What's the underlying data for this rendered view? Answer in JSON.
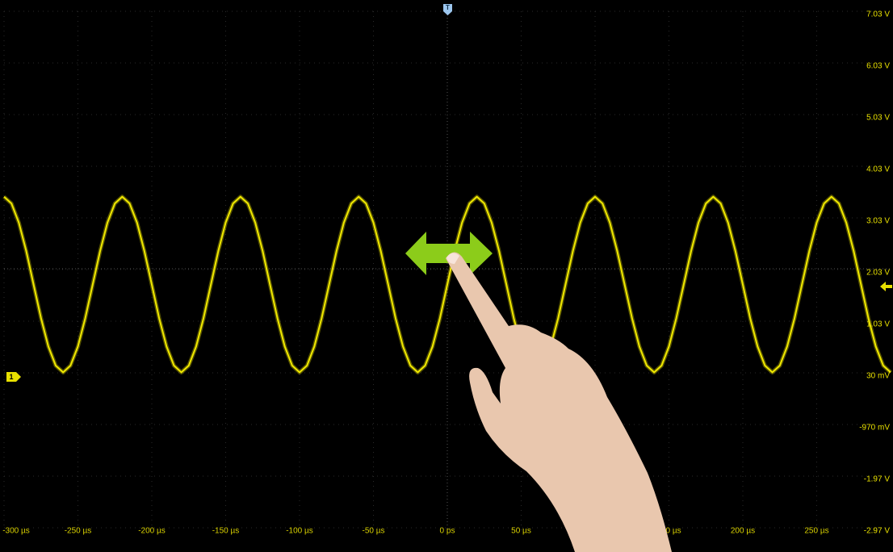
{
  "chart_data": {
    "type": "line",
    "trigger_marker": "T",
    "channel_marker": "1",
    "x": [
      -300,
      -295,
      -290,
      -285,
      -280,
      -275,
      -270,
      -265,
      -260,
      -255,
      -250,
      -245,
      -240,
      -235,
      -230,
      -225,
      -220,
      -215,
      -210,
      -205,
      -200,
      -195,
      -190,
      -185,
      -180,
      -175,
      -170,
      -165,
      -160,
      -155,
      -150,
      -145,
      -140,
      -135,
      -130,
      -125,
      -120,
      -115,
      -110,
      -105,
      -100,
      -95,
      -90,
      -85,
      -80,
      -75,
      -70,
      -65,
      -60,
      -55,
      -50,
      -45,
      -40,
      -35,
      -30,
      -25,
      -20,
      -15,
      -10,
      -5,
      0,
      5,
      10,
      15,
      20,
      25,
      30,
      35,
      40,
      45,
      50,
      55,
      60,
      65,
      70,
      75,
      80,
      85,
      90,
      95,
      100,
      105,
      110,
      115,
      120,
      125,
      130,
      135,
      140,
      145,
      150,
      155,
      160,
      165,
      170,
      175,
      180,
      185,
      190,
      195,
      200,
      205,
      210,
      215,
      220,
      225,
      230,
      235,
      240,
      245,
      250,
      255,
      260,
      265,
      270,
      275,
      280,
      285,
      290,
      295,
      300
    ],
    "series": [
      {
        "color": "#f0e800",
        "values": [
          3.44,
          3.31,
          2.94,
          2.39,
          1.74,
          1.09,
          0.54,
          0.17,
          0.04,
          0.17,
          0.54,
          1.09,
          1.74,
          2.39,
          2.94,
          3.31,
          3.44,
          3.31,
          2.94,
          2.39,
          1.74,
          1.09,
          0.54,
          0.17,
          0.04,
          0.17,
          0.54,
          1.09,
          1.74,
          2.39,
          2.94,
          3.31,
          3.44,
          3.31,
          2.94,
          2.39,
          1.74,
          1.09,
          0.54,
          0.17,
          0.04,
          0.17,
          0.54,
          1.09,
          1.74,
          2.39,
          2.94,
          3.31,
          3.44,
          3.31,
          2.94,
          2.39,
          1.74,
          1.09,
          0.54,
          0.17,
          0.04,
          0.17,
          0.54,
          1.09,
          1.74,
          2.39,
          2.94,
          3.31,
          3.44,
          3.31,
          2.94,
          2.39,
          1.74,
          1.09,
          0.54,
          0.17,
          0.04,
          0.17,
          0.54,
          1.09,
          1.74,
          2.39,
          2.94,
          3.31,
          3.44,
          3.31,
          2.94,
          2.39,
          1.74,
          1.09,
          0.54,
          0.17,
          0.04,
          0.17,
          0.54,
          1.09,
          1.74,
          2.39,
          2.94,
          3.31,
          3.44,
          3.31,
          2.94,
          2.39,
          1.74,
          1.09,
          0.54,
          0.17,
          0.04,
          0.17,
          0.54,
          1.09,
          1.74,
          2.39,
          2.94,
          3.31,
          3.44,
          3.31,
          2.94,
          2.39,
          1.74,
          1.09,
          0.54,
          0.17,
          0.04
        ]
      }
    ],
    "xlim": [
      -300,
      300
    ],
    "ylim": [
      -2.97,
      7.03
    ],
    "xticks": [
      {
        "value": -300,
        "label": "-300 µs"
      },
      {
        "value": -250,
        "label": "-250 µs"
      },
      {
        "value": -200,
        "label": "-200 µs"
      },
      {
        "value": -150,
        "label": "-150 µs"
      },
      {
        "value": -100,
        "label": "-100 µs"
      },
      {
        "value": -50,
        "label": "-50 µs"
      },
      {
        "value": 0,
        "label": "0 ps"
      },
      {
        "value": 50,
        "label": "50 µs"
      },
      {
        "value": 100,
        "label": "100 µs"
      },
      {
        "value": 150,
        "label": "150 µs"
      },
      {
        "value": 200,
        "label": "200 µs"
      },
      {
        "value": 250,
        "label": "250 µs"
      }
    ],
    "yticks": [
      {
        "value": 7.03,
        "label": "7.03 V"
      },
      {
        "value": 6.03,
        "label": "6.03 V"
      },
      {
        "value": 5.03,
        "label": "5.03 V"
      },
      {
        "value": 4.03,
        "label": "4.03 V"
      },
      {
        "value": 3.03,
        "label": "3.03 V"
      },
      {
        "value": 2.03,
        "label": "2.03 V"
      },
      {
        "value": 1.03,
        "label": "1.03 V"
      },
      {
        "value": 0.03,
        "label": "30 mV"
      },
      {
        "value": -0.97,
        "label": "-970 mV"
      },
      {
        "value": -1.97,
        "label": "-1.97 V"
      },
      {
        "value": -2.97,
        "label": "-2.97 V"
      }
    ],
    "grid": true
  }
}
